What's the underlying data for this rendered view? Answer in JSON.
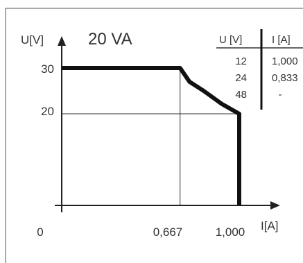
{
  "chart_data": {
    "type": "line",
    "title": "20 VA",
    "xlabel": "I[A]",
    "ylabel": "U[V]",
    "x_ticks": [
      {
        "value": 0,
        "label": "0"
      },
      {
        "value": 0.667,
        "label": "0,667"
      },
      {
        "value": 1.0,
        "label": "1,000"
      }
    ],
    "y_ticks": [
      {
        "value": 20,
        "label": "20"
      },
      {
        "value": 30,
        "label": "30"
      }
    ],
    "xlim": [
      0,
      1.15
    ],
    "ylim": [
      0,
      33
    ],
    "guide_lines": {
      "x": [
        0.667
      ],
      "y": [
        20
      ]
    },
    "series": [
      {
        "points": [
          {
            "x": 0,
            "y": 30
          },
          {
            "x": 0.667,
            "y": 30
          },
          {
            "x": 0.72,
            "y": 27
          },
          {
            "x": 0.8,
            "y": 25
          },
          {
            "x": 0.9,
            "y": 22.2
          },
          {
            "x": 1.0,
            "y": 20
          },
          {
            "x": 1.0,
            "y": 0
          }
        ]
      }
    ],
    "table": {
      "headers": [
        "U [V]",
        "I [A]"
      ],
      "rows": [
        [
          "12",
          "1,000"
        ],
        [
          "24",
          "0,833"
        ],
        [
          "48",
          "-"
        ]
      ]
    },
    "colors": {
      "curve": "#111111",
      "axes": "#222222",
      "guides": "#333333",
      "frame": "#555555",
      "text": "#333333"
    }
  }
}
